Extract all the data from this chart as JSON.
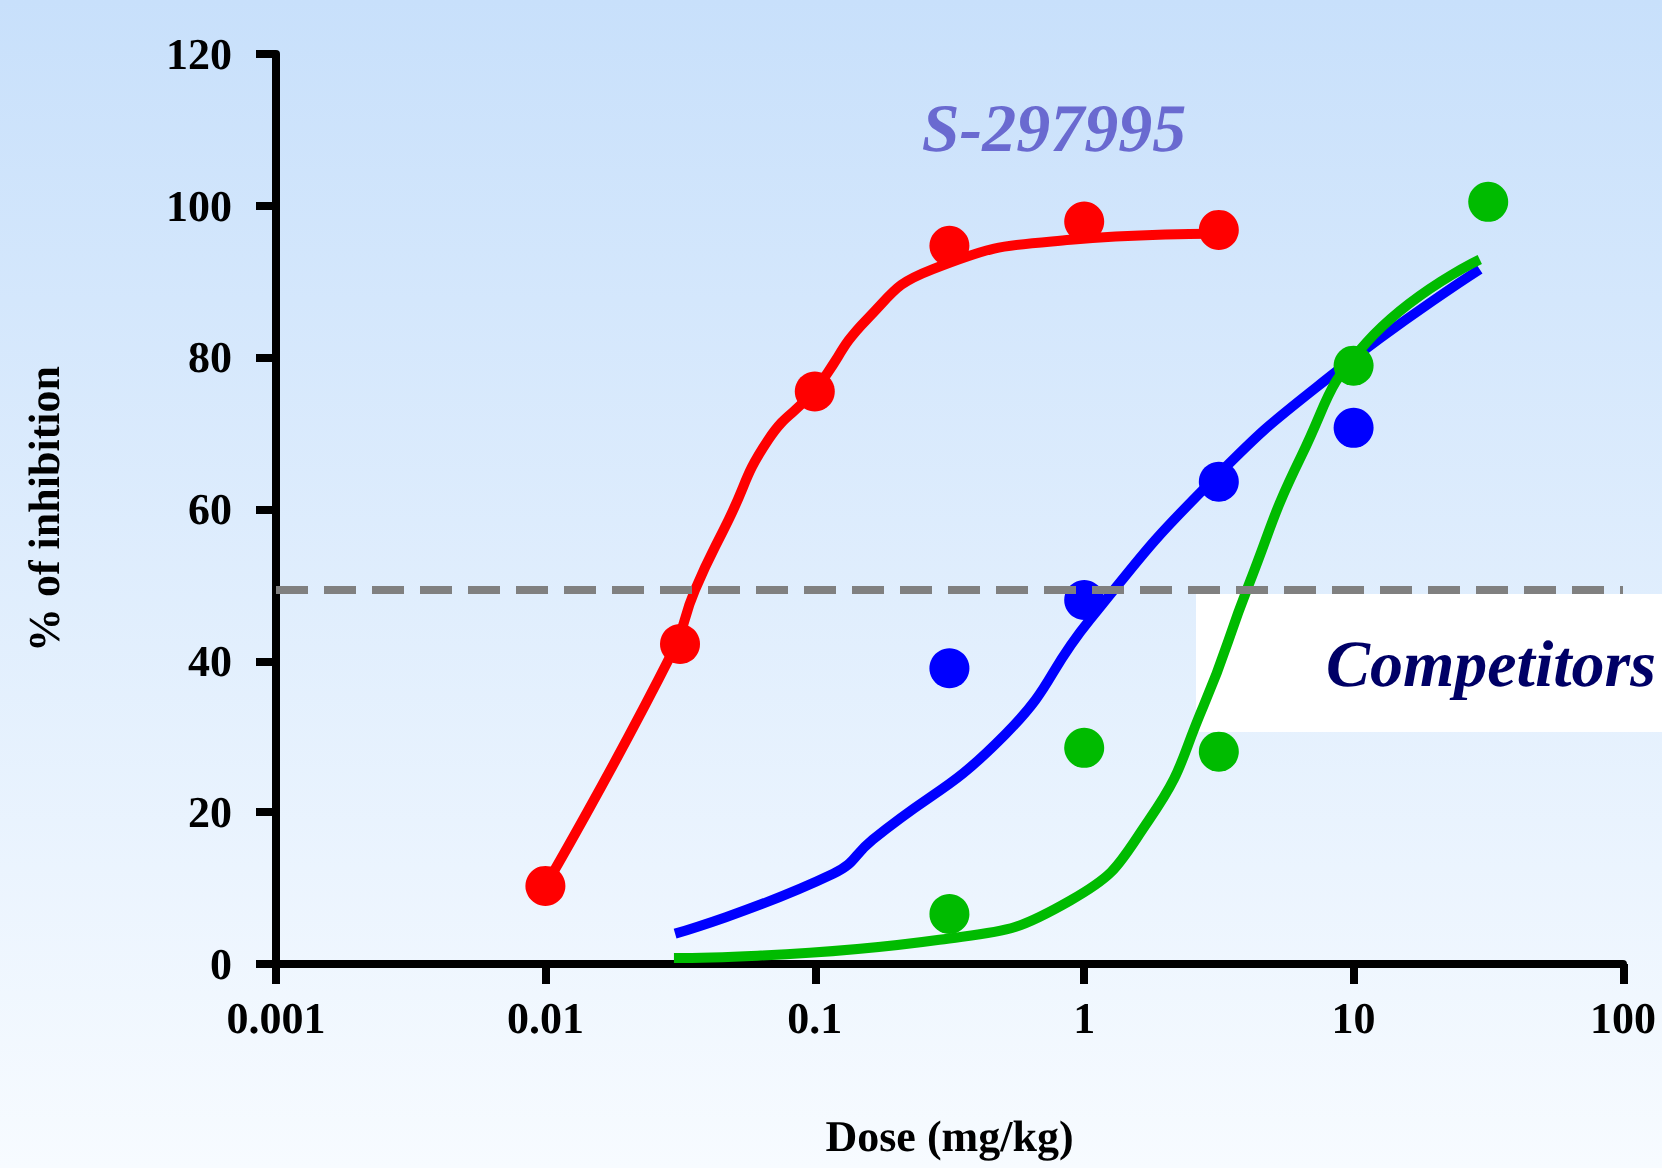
{
  "chart_data": {
    "type": "scatter",
    "xlabel": "Dose (mg/kg)",
    "ylabel": "% of inhibition",
    "log": "x",
    "xlim": [
      0.001,
      100
    ],
    "xticks": [
      0.001,
      0.01,
      0.1,
      1,
      10,
      100
    ],
    "ylim": [
      0,
      120
    ],
    "yticks": [
      0,
      20,
      40,
      60,
      80,
      100,
      120
    ],
    "grid": false,
    "series": [
      {
        "type": "line",
        "marker": "none",
        "color": "#ff0000",
        "x": [
          0.01,
          0.0294,
          0.0359,
          0.0479,
          0.0671,
          0.1,
          0.156,
          0.273,
          0.89,
          2.9
        ],
        "values": [
          10.3,
          40.9,
          49.3,
          58.6,
          69.1,
          75.7,
          85,
          91.6,
          95.5,
          96.3
        ]
      },
      {
        "type": "line",
        "marker": "none",
        "color": "#0000ff",
        "x": [
          0.0303,
          0.117,
          0.164,
          0.51,
          1.05,
          2.9,
          8.4,
          29.4
        ],
        "values": [
          4,
          11.9,
          16.4,
          30.3,
          45.4,
          63.3,
          77.8,
          91.6
        ]
      },
      {
        "type": "line",
        "marker": "none",
        "color": "#00bb00",
        "x": [
          0.03,
          0.29,
          0.89,
          1.74,
          2.77,
          4.07,
          6.4,
          11.2,
          29.4
        ],
        "values": [
          0.8,
          3.2,
          8.4,
          19,
          34,
          49.9,
          67,
          82,
          92.9
        ]
      },
      {
        "marker": "circle",
        "color": "#ff0000",
        "x": [
          0.01,
          0.0316,
          0.1,
          0.316,
          1,
          3.16
        ],
        "values": [
          10.3,
          42.2,
          75.5,
          94.7,
          97.9,
          96.8
        ]
      },
      {
        "marker": "circle",
        "color": "#0000ff",
        "x": [
          0.316,
          1,
          3.16,
          10
        ],
        "values": [
          39,
          48,
          63.6,
          70.7
        ]
      },
      {
        "marker": "circle",
        "color": "#00bb00",
        "x": [
          0.316,
          1,
          3.16,
          10,
          31.6
        ],
        "values": [
          6.6,
          28.5,
          28,
          78.9,
          100.5
        ]
      }
    ],
    "ref_lines": [
      {
        "axis": "y",
        "value": 49.3,
        "color": "#808080",
        "line_style": "dashed"
      }
    ],
    "annotations": [
      "S-297995",
      "Competitors"
    ]
  }
}
